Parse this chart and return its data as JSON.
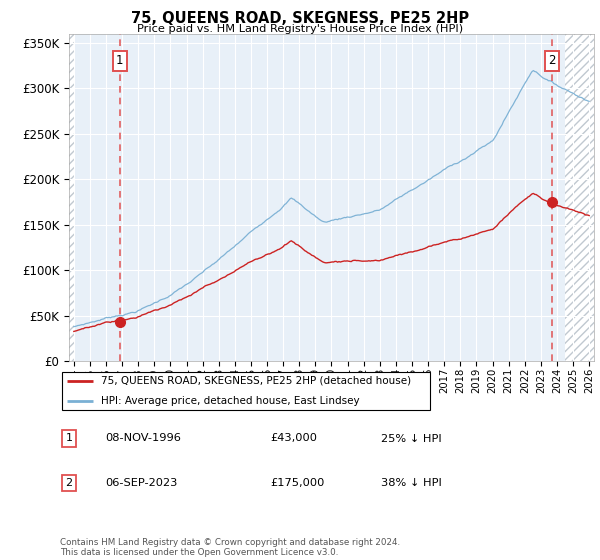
{
  "title": "75, QUEENS ROAD, SKEGNESS, PE25 2HP",
  "subtitle": "Price paid vs. HM Land Registry's House Price Index (HPI)",
  "legend_line1": "75, QUEENS ROAD, SKEGNESS, PE25 2HP (detached house)",
  "legend_line2": "HPI: Average price, detached house, East Lindsey",
  "table_row1_label": "1",
  "table_row1_date": "08-NOV-1996",
  "table_row1_price": "£43,000",
  "table_row1_hpi": "25% ↓ HPI",
  "table_row2_label": "2",
  "table_row2_date": "06-SEP-2023",
  "table_row2_price": "£175,000",
  "table_row2_hpi": "38% ↓ HPI",
  "footer": "Contains HM Land Registry data © Crown copyright and database right 2024.\nThis data is licensed under the Open Government Licence v3.0.",
  "sale1_year": 1996.85,
  "sale1_price": 43000,
  "sale2_year": 2023.67,
  "sale2_price": 175000,
  "hpi_color": "#7ab0d4",
  "price_color": "#cc2222",
  "dashed_line_color": "#e05050",
  "marker_color": "#cc2222",
  "ylim": [
    0,
    360000
  ],
  "yticks": [
    0,
    50000,
    100000,
    150000,
    200000,
    250000,
    300000,
    350000
  ],
  "xlim_start": 1993.7,
  "xlim_end": 2026.3,
  "xticks": [
    1994,
    1995,
    1996,
    1997,
    1998,
    1999,
    2000,
    2001,
    2002,
    2003,
    2004,
    2005,
    2006,
    2007,
    2008,
    2009,
    2010,
    2011,
    2012,
    2013,
    2014,
    2015,
    2016,
    2017,
    2018,
    2019,
    2020,
    2021,
    2022,
    2023,
    2024,
    2025,
    2026
  ],
  "bg_color": "#e8f0f8"
}
